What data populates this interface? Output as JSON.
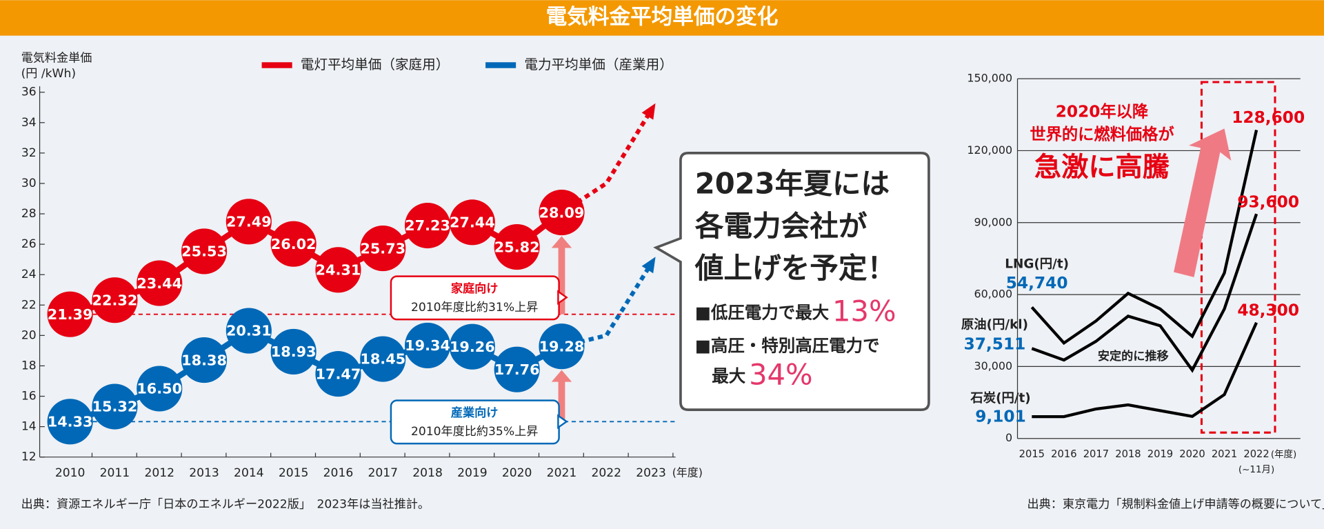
{
  "title": "電気料金平均単価の変化",
  "chart_data": [
    {
      "type": "line",
      "y_label": [
        "電気料金単価",
        "(円 /kWh)"
      ],
      "categories": [
        "2010",
        "2011",
        "2012",
        "2013",
        "2014",
        "2015",
        "2016",
        "2017",
        "2018",
        "2019",
        "2020",
        "2021",
        "2022",
        "2023"
      ],
      "x_unit": "(年度)",
      "ylim": [
        12,
        36
      ],
      "yticks": [
        12,
        14,
        16,
        18,
        20,
        22,
        24,
        26,
        28,
        30,
        32,
        34,
        36
      ],
      "grid": false,
      "dashed_after": 11,
      "series": [
        {
          "name": "電灯平均単価（家庭用）",
          "color": "#e60012",
          "values": [
            21.39,
            22.32,
            23.44,
            25.53,
            27.49,
            26.02,
            24.31,
            25.73,
            27.23,
            27.44,
            25.82,
            28.09,
            30,
            34.8
          ],
          "value_labels": [
            "21.39",
            "22.32",
            "23.44",
            "25.53",
            "27.49",
            "26.02",
            "24.31",
            "25.73",
            "27.23",
            "27.44",
            "25.82",
            "28.09",
            null,
            null
          ],
          "annotation": {
            "title": "家庭向け",
            "text": "2010年度比約31%上昇"
          }
        },
        {
          "name": "電力平均単価（産業用）",
          "color": "#0068b7",
          "values": [
            14.33,
            15.32,
            16.5,
            18.38,
            20.31,
            18.93,
            17.47,
            18.45,
            19.34,
            19.26,
            17.76,
            19.28,
            20,
            24.7
          ],
          "value_labels": [
            "14.33",
            "15.32",
            "16.50",
            "18.38",
            "20.31",
            "18.93",
            "17.47",
            "18.45",
            "19.34",
            "19.26",
            "17.76",
            "19.28",
            null,
            null
          ],
          "annotation": {
            "title": "産業向け",
            "text": "2010年度比約35%上昇"
          }
        }
      ],
      "bubble": {
        "heading": [
          "2023年夏には",
          "各電力会社が",
          "値上げを予定！"
        ],
        "items": [
          {
            "text": [
              "■低圧電力で最大"
            ],
            "highlight": "13%"
          },
          {
            "text": [
              "■高圧・特別高圧電力で",
              "最大"
            ],
            "highlight": "34%"
          }
        ]
      },
      "source": "出典：資源エネルギー庁「日本のエネルギー2022版」　2023年は当社推計。"
    },
    {
      "type": "line",
      "categories": [
        "2015",
        "2016",
        "2017",
        "2018",
        "2019",
        "2020",
        "2021",
        "2022"
      ],
      "x_unit": "(年度)",
      "x_note": "(~11月)",
      "ylim": [
        0,
        150000
      ],
      "yticks": [
        0,
        {
          "value": 30000,
          "label": "30,000"
        },
        {
          "value": 60000,
          "label": "60,000"
        },
        {
          "value": 90000,
          "label": "90,000"
        },
        {
          "value": 120000,
          "label": "120,000"
        },
        {
          "value": 150000,
          "label": "150,000"
        }
      ],
      "grid": true,
      "series": [
        {
          "name": "LNG(円/t)",
          "color": "#000000",
          "values": [
            54740,
            39800,
            49000,
            60500,
            54000,
            42600,
            69000,
            128600
          ],
          "value_labels": [
            "54,740",
            null,
            null,
            null,
            null,
            null,
            null,
            "128,600"
          ]
        },
        {
          "name": "原油(円/kl)",
          "color": "#000000",
          "values": [
            37511,
            32700,
            40500,
            51000,
            47000,
            28500,
            54000,
            93600
          ],
          "value_labels": [
            "37,511",
            null,
            null,
            null,
            null,
            null,
            null,
            "93,600"
          ]
        },
        {
          "name": "石炭(円/t)",
          "color": "#000000",
          "values": [
            9101,
            9100,
            12300,
            14000,
            11600,
            9200,
            18300,
            48300
          ],
          "value_labels": [
            "9,101",
            null,
            null,
            null,
            null,
            null,
            null,
            "48,300"
          ]
        }
      ],
      "annotations": [
        "安定的に推移"
      ],
      "highlight": [
        "2020年以降",
        "世界的に燃料価格が",
        "急激に高騰"
      ],
      "source": "出典：東京電力「規制料金値上げ申請等の概要について」"
    }
  ]
}
